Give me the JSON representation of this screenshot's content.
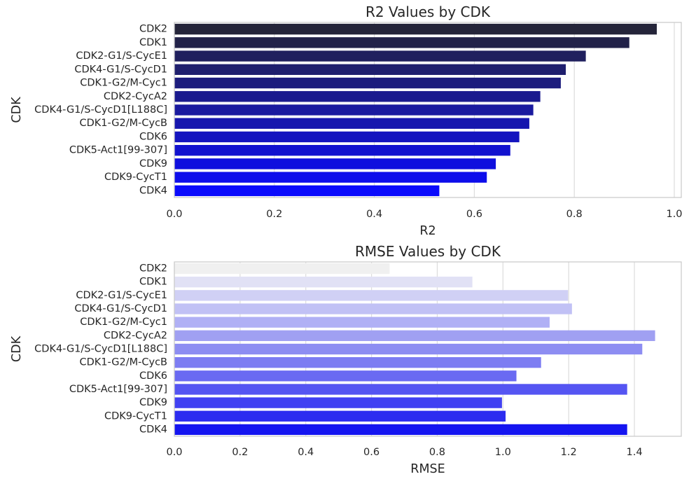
{
  "chart_data": [
    {
      "type": "bar",
      "orientation": "horizontal",
      "title": "R2 Values by CDK",
      "xlabel": "R2",
      "ylabel": "CDK",
      "xlim": [
        0,
        1.0
      ],
      "xticks": [
        "0.0",
        "0.2",
        "0.4",
        "0.6",
        "0.8",
        "1.0"
      ],
      "grid": "vertical",
      "categories": [
        "CDK2",
        "CDK1",
        "CDK2-G1/S-CycE1",
        "CDK4-G1/S-CycD1",
        "CDK1-G2/M-Cyc1",
        "CDK2-CycA2",
        "CDK4-G1/S-CycD1[L188C]",
        "CDK1-G2/M-CycB",
        "CDK6",
        "CDK5-Act1[99-307]",
        "CDK9",
        "CDK9-CycT1",
        "CDK4"
      ],
      "values": [
        0.965,
        0.91,
        0.823,
        0.783,
        0.773,
        0.732,
        0.718,
        0.71,
        0.69,
        0.672,
        0.643,
        0.625,
        0.53
      ],
      "colors": [
        "#25253a",
        "#222249",
        "#20205e",
        "#1f1f6e",
        "#1c1c7d",
        "#1a1a8e",
        "#1a1a9f",
        "#1616ae",
        "#1414bf",
        "#1212cf",
        "#0f0fde",
        "#0d0deb",
        "#0a0afc"
      ]
    },
    {
      "type": "bar",
      "orientation": "horizontal",
      "title": "RMSE Values by CDK",
      "xlabel": "RMSE",
      "ylabel": "CDK",
      "xlim": [
        0,
        1.4
      ],
      "xticks": [
        "0.0",
        "0.2",
        "0.4",
        "0.6",
        "0.8",
        "1.0",
        "1.2",
        "1.4"
      ],
      "grid": "vertical",
      "categories": [
        "CDK2",
        "CDK1",
        "CDK2-G1/S-CycE1",
        "CDK4-G1/S-CycD1",
        "CDK1-G2/M-Cyc1",
        "CDK2-CycA2",
        "CDK4-G1/S-CycD1[L188C]",
        "CDK1-G2/M-CycB",
        "CDK6",
        "CDK5-Act1[99-307]",
        "CDK9",
        "CDK9-CycT1",
        "CDK4"
      ],
      "values": [
        0.655,
        0.907,
        1.198,
        1.21,
        1.142,
        1.463,
        1.424,
        1.116,
        1.041,
        1.378,
        0.997,
        1.008,
        1.378
      ],
      "colors": [
        "#f0f0f0",
        "#e1e1f5",
        "#d0d0f5",
        "#c1c1f5",
        "#b0b0f5",
        "#a0a0f2",
        "#8d8df2",
        "#7d7df2",
        "#6a6af2",
        "#5555f2",
        "#4141f2",
        "#2c2cf0",
        "#1414f0"
      ]
    }
  ]
}
